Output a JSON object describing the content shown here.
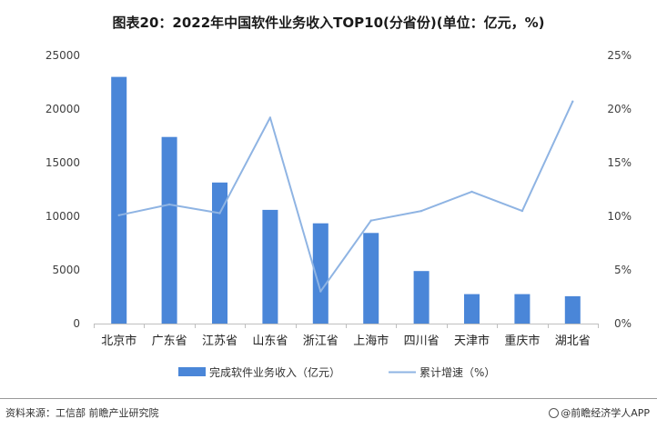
{
  "title": "图表20：2022年中国软件业务收入TOP10(分省份)(单位：亿元，%)",
  "source": "资料来源：工信部 前瞻产业研究院",
  "brand": "@前瞻经济学人APP",
  "colors": {
    "bar": "#4a86d8",
    "line": "#8fb4e3",
    "axis": "#bfbfbf"
  },
  "chart_data": {
    "type": "bar",
    "categories": [
      "北京市",
      "广东省",
      "江苏省",
      "山东省",
      "浙江省",
      "上海市",
      "四川省",
      "天津市",
      "重庆市",
      "湖北省"
    ],
    "series": [
      {
        "name": "完成软件业务收入（亿元）",
        "type": "bar",
        "axis": "left",
        "values": [
          23000,
          17400,
          13150,
          10600,
          9350,
          8450,
          4900,
          2750,
          2750,
          2550
        ]
      },
      {
        "name": "累计增速（%）",
        "type": "line",
        "axis": "right",
        "values": [
          10.1,
          11.1,
          10.3,
          19.2,
          3.0,
          9.6,
          10.5,
          12.3,
          10.5,
          20.7
        ]
      }
    ],
    "y_left": {
      "min": 0,
      "max": 25000,
      "ticks": [
        "0",
        "5000",
        "10000",
        "15000",
        "20000",
        "25000"
      ]
    },
    "y_right": {
      "min": 0,
      "max": 25,
      "ticks": [
        "0%",
        "5%",
        "10%",
        "15%",
        "20%",
        "25%"
      ]
    },
    "legend_position": "bottom",
    "grid": false
  }
}
